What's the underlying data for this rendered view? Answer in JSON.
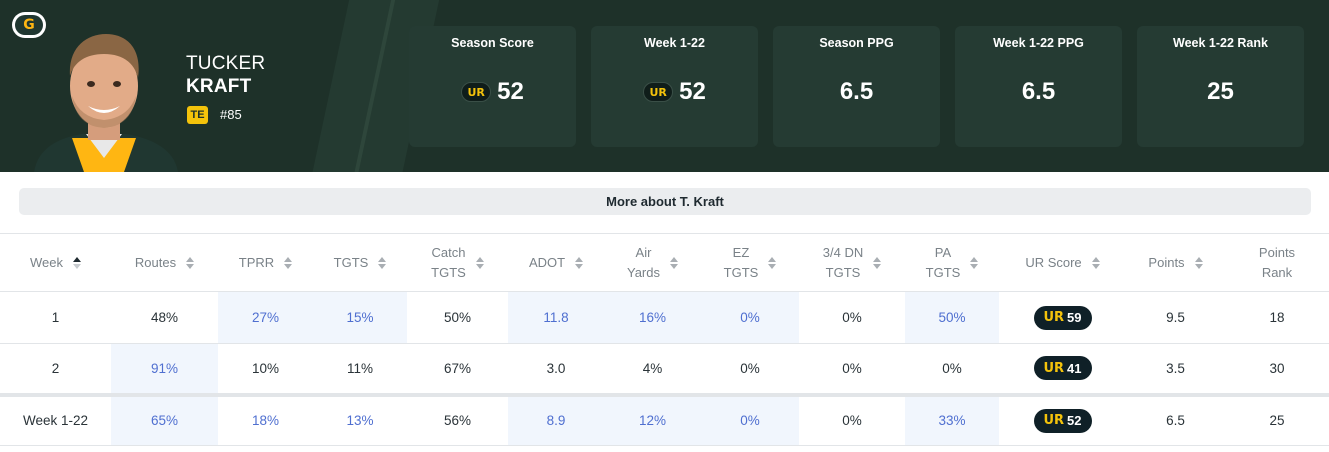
{
  "player": {
    "team_logo_letter": "G",
    "first_name": "TUCKER",
    "last_name": "KRAFT",
    "position": "TE",
    "jersey": "#85"
  },
  "stat_cards": [
    {
      "label": "Season Score",
      "value": "52",
      "badge": "UR"
    },
    {
      "label": "Week 1-22",
      "value": "52",
      "badge": "UR"
    },
    {
      "label": "Season PPG",
      "value": "6.5",
      "badge": ""
    },
    {
      "label": "Week 1-22 PPG",
      "value": "6.5",
      "badge": ""
    },
    {
      "label": "Week 1-22 Rank",
      "value": "25",
      "badge": ""
    }
  ],
  "more_about": "More about T. Kraft",
  "table": {
    "headers": [
      {
        "line1": "Week",
        "line2": ""
      },
      {
        "line1": "Routes",
        "line2": ""
      },
      {
        "line1": "TPRR",
        "line2": ""
      },
      {
        "line1": "TGTS",
        "line2": ""
      },
      {
        "line1": "Catch",
        "line2": "TGTS"
      },
      {
        "line1": "ADOT",
        "line2": ""
      },
      {
        "line1": "Air",
        "line2": "Yards"
      },
      {
        "line1": "EZ",
        "line2": "TGTS"
      },
      {
        "line1": "3/4 DN",
        "line2": "TGTS"
      },
      {
        "line1": "PA",
        "line2": "TGTS"
      },
      {
        "line1": "UR Score",
        "line2": ""
      },
      {
        "line1": "Points",
        "line2": ""
      },
      {
        "line1": "Points",
        "line2": "Rank"
      }
    ],
    "ur_badge": "UR",
    "rows": [
      {
        "week": "1",
        "routes": "48%",
        "tprr": "27%",
        "tgts": "15%",
        "catch_tgts": "50%",
        "adot": "11.8",
        "air_yards": "16%",
        "ez_tgts": "0%",
        "dn34_tgts": "0%",
        "pa_tgts": "50%",
        "ur_score": "59",
        "points": "9.5",
        "points_rank": "18"
      },
      {
        "week": "2",
        "routes": "91%",
        "tprr": "10%",
        "tgts": "11%",
        "catch_tgts": "67%",
        "adot": "3.0",
        "air_yards": "4%",
        "ez_tgts": "0%",
        "dn34_tgts": "0%",
        "pa_tgts": "0%",
        "ur_score": "41",
        "points": "3.5",
        "points_rank": "30"
      },
      {
        "week": "Week 1-22",
        "routes": "65%",
        "tprr": "18%",
        "tgts": "13%",
        "catch_tgts": "56%",
        "adot": "8.9",
        "air_yards": "12%",
        "ez_tgts": "0%",
        "dn34_tgts": "0%",
        "pa_tgts": "33%",
        "ur_score": "52",
        "points": "6.5",
        "points_rank": "25"
      }
    ]
  },
  "colors": {
    "header_bg": "#1e3129",
    "card_bg": "#253b33",
    "accent_gold": "#f4c30b",
    "highlight_cell": "#f1f6fd",
    "highlight_text": "#4f6fd0"
  }
}
